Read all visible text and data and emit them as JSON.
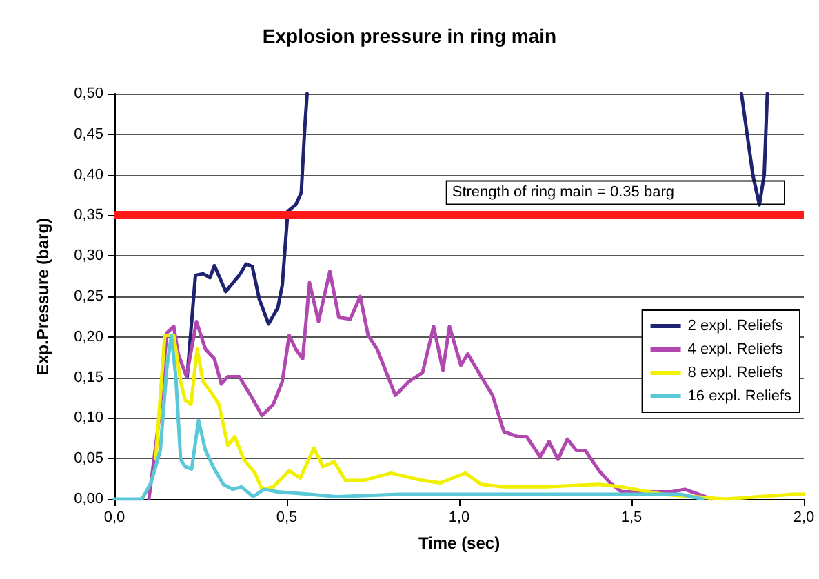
{
  "chart_data": {
    "type": "line",
    "title": "Explosion pressure in ring main",
    "xlabel": "Time (sec)",
    "ylabel": "Exp.Pressure (barg)",
    "xlim": [
      0,
      2
    ],
    "xticks": [
      {
        "value": 0,
        "label": "0,0"
      },
      {
        "value": 0.5,
        "label": "0,5"
      },
      {
        "value": 1,
        "label": "1,0"
      },
      {
        "value": 1.5,
        "label": "1,5"
      },
      {
        "value": 2,
        "label": "2,0"
      }
    ],
    "ylim": [
      0,
      0.5
    ],
    "yticks": [
      {
        "value": 0,
        "label": "0,00"
      },
      {
        "value": 0.05,
        "label": "0,05"
      },
      {
        "value": 0.1,
        "label": "0,10"
      },
      {
        "value": 0.15,
        "label": "0,15"
      },
      {
        "value": 0.2,
        "label": "0,20"
      },
      {
        "value": 0.25,
        "label": "0,25"
      },
      {
        "value": 0.3,
        "label": "0,30"
      },
      {
        "value": 0.35,
        "label": "0,35"
      },
      {
        "value": 0.4,
        "label": "0,40"
      },
      {
        "value": 0.45,
        "label": "0,45"
      },
      {
        "value": 0.5,
        "label": "0,50"
      }
    ],
    "grid": "y",
    "legend": "right",
    "marker": "none",
    "line_style": "solid",
    "ref_lines": [
      {
        "axis": "y",
        "value": 0.35,
        "label": "Strength of ring main = 0.35 barg",
        "color": "#ff1a1a"
      }
    ],
    "series": [
      {
        "name": "2 expl. Reliefs",
        "color": "#1f2270",
        "x": [
          0.211,
          0.235,
          0.257,
          0.277,
          0.29,
          0.323,
          0.362,
          0.382,
          0.4,
          0.42,
          0.447,
          0.474,
          0.487,
          0.503,
          0.526,
          0.542,
          0.552,
          0.559,
          1.2,
          1.819,
          1.852,
          1.871,
          1.885,
          1.894
        ],
        "values": [
          0.151,
          0.276,
          0.278,
          0.273,
          0.288,
          0.256,
          0.276,
          0.29,
          0.287,
          0.247,
          0.216,
          0.236,
          0.264,
          0.355,
          0.363,
          0.378,
          0.457,
          0.5,
          null,
          0.5,
          0.4,
          0.363,
          0.4,
          0.5
        ]
      },
      {
        "name": "4 expl. Reliefs",
        "color": "#b048b0",
        "x": [
          0.1,
          0.13,
          0.152,
          0.172,
          0.185,
          0.209,
          0.238,
          0.264,
          0.29,
          0.31,
          0.329,
          0.362,
          0.395,
          0.428,
          0.461,
          0.487,
          0.507,
          0.526,
          0.546,
          0.566,
          0.592,
          0.625,
          0.651,
          0.684,
          0.713,
          0.736,
          0.762,
          0.815,
          0.854,
          0.894,
          0.926,
          0.953,
          0.972,
          1.005,
          1.025,
          1.064,
          1.097,
          1.13,
          1.17,
          1.196,
          1.235,
          1.261,
          1.287,
          1.314,
          1.34,
          1.366,
          1.406,
          1.438,
          1.471,
          1.537,
          1.616,
          1.655,
          1.734
        ],
        "values": [
          0,
          0.1,
          0.205,
          0.213,
          0.179,
          0.151,
          0.219,
          0.185,
          0.173,
          0.142,
          0.151,
          0.151,
          0.128,
          0.103,
          0.117,
          0.145,
          0.202,
          0.185,
          0.173,
          0.267,
          0.219,
          0.281,
          0.224,
          0.222,
          0.25,
          0.202,
          0.185,
          0.128,
          0.145,
          0.156,
          0.213,
          0.159,
          0.213,
          0.165,
          0.179,
          0.151,
          0.128,
          0.083,
          0.077,
          0.077,
          0.052,
          0.071,
          0.049,
          0.074,
          0.06,
          0.06,
          0.035,
          0.02,
          0.009,
          0.009,
          0.009,
          0.012,
          0
        ]
      },
      {
        "name": "8 expl. Reliefs",
        "color": "#f0f000",
        "x": [
          0.12,
          0.146,
          0.172,
          0.192,
          0.205,
          0.222,
          0.24,
          0.257,
          0.277,
          0.303,
          0.329,
          0.349,
          0.375,
          0.408,
          0.428,
          0.461,
          0.507,
          0.539,
          0.579,
          0.605,
          0.638,
          0.67,
          0.723,
          0.802,
          0.894,
          0.946,
          1.018,
          1.064,
          1.13,
          1.248,
          1.406,
          1.471,
          1.589,
          1.772,
          1.97,
          2.0
        ],
        "values": [
          0.05,
          0.202,
          0.202,
          0.145,
          0.122,
          0.117,
          0.185,
          0.145,
          0.134,
          0.117,
          0.066,
          0.077,
          0.049,
          0.032,
          0.012,
          0.015,
          0.035,
          0.026,
          0.063,
          0.04,
          0.046,
          0.023,
          0.023,
          0.032,
          0.023,
          0.02,
          0.032,
          0.018,
          0.015,
          0.015,
          0.018,
          0.015,
          0.006,
          0,
          0.006,
          0.006
        ]
      },
      {
        "name": "16 expl. Reliefs",
        "color": "#5bc8d8",
        "x": [
          0,
          0.08,
          0.106,
          0.133,
          0.152,
          0.165,
          0.178,
          0.192,
          0.205,
          0.224,
          0.244,
          0.264,
          0.29,
          0.316,
          0.343,
          0.369,
          0.402,
          0.434,
          0.474,
          0.566,
          0.644,
          0.828,
          1.248,
          1.642,
          1.707
        ],
        "values": [
          0,
          0,
          0.02,
          0.06,
          0.162,
          0.202,
          0.151,
          0.049,
          0.04,
          0.037,
          0.097,
          0.06,
          0.037,
          0.018,
          0.012,
          0.015,
          0.003,
          0.012,
          0.009,
          0.006,
          0.003,
          0.006,
          0.006,
          0.006,
          0
        ]
      }
    ]
  }
}
